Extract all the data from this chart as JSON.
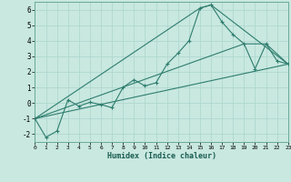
{
  "bg_color": "#c8e8e0",
  "grid_color": "#b0d8d0",
  "line_color": "#2e7d6e",
  "xlabel": "Humidex (Indice chaleur)",
  "xlim": [
    0,
    23
  ],
  "ylim": [
    -2.5,
    6.5
  ],
  "xticks": [
    0,
    1,
    2,
    3,
    4,
    5,
    6,
    7,
    8,
    9,
    10,
    11,
    12,
    13,
    14,
    15,
    16,
    17,
    18,
    19,
    20,
    21,
    22,
    23
  ],
  "yticks": [
    -2,
    -1,
    0,
    1,
    2,
    3,
    4,
    5,
    6
  ],
  "line1_x": [
    0,
    1,
    2,
    3,
    4,
    5,
    6,
    7,
    8,
    9,
    10,
    11,
    12,
    13,
    14,
    15,
    16,
    17,
    18,
    19,
    20,
    21,
    22,
    23
  ],
  "line1_y": [
    -1.0,
    -2.2,
    -1.8,
    0.2,
    -0.2,
    0.05,
    -0.1,
    -0.3,
    1.0,
    1.5,
    1.1,
    1.3,
    2.5,
    3.2,
    4.0,
    6.1,
    6.3,
    5.2,
    4.4,
    3.8,
    2.2,
    3.8,
    2.7,
    2.5
  ],
  "line2_x": [
    0,
    23
  ],
  "line2_y": [
    -1.0,
    2.5
  ],
  "line3_x": [
    0,
    15,
    16,
    23
  ],
  "line3_y": [
    -1.0,
    6.1,
    6.3,
    2.5
  ],
  "line4_x": [
    0,
    19,
    21,
    23
  ],
  "line4_y": [
    -1.0,
    3.8,
    3.8,
    2.5
  ]
}
